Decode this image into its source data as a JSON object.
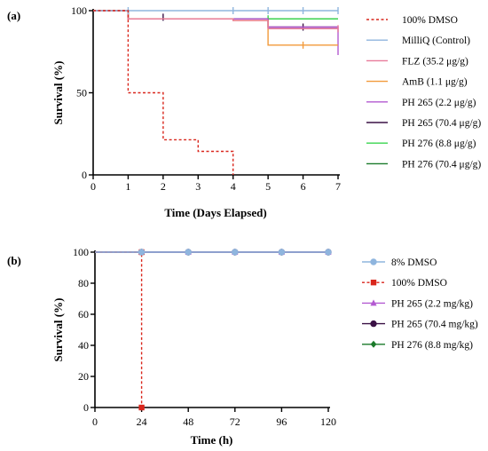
{
  "chart_data": [
    {
      "panel_label": "(a)",
      "type": "line",
      "subtype": "kaplan-meier-step",
      "xlabel": "Time (Days Elapsed)",
      "ylabel": "Survival (%)",
      "xlim": [
        0,
        7
      ],
      "ylim": [
        0,
        100
      ],
      "xticks": [
        0,
        1,
        2,
        3,
        4,
        5,
        6,
        7
      ],
      "yticks": [
        0,
        50,
        100
      ],
      "grid": false,
      "legend": "right",
      "series": [
        {
          "name": "100% DMSO",
          "color": "#d9261c",
          "dashed": true,
          "x": [
            0,
            1,
            1,
            2,
            2,
            3,
            3,
            4,
            4
          ],
          "y": [
            100,
            100,
            50,
            50,
            21.4,
            21.4,
            14.3,
            14.3,
            0
          ],
          "censor": []
        },
        {
          "name": "MilliQ (Control)",
          "color": "#8fb5de",
          "dashed": false,
          "x": [
            0,
            7
          ],
          "y": [
            100,
            100
          ],
          "censor": [
            [
              1,
              100
            ],
            [
              4,
              100
            ],
            [
              5,
              100
            ],
            [
              6,
              100
            ],
            [
              7,
              100
            ]
          ]
        },
        {
          "name": "FLZ (35.2 μg/g)",
          "color": "#e87a9a",
          "dashed": false,
          "x": [
            0,
            1,
            1,
            4,
            4,
            5,
            5,
            7
          ],
          "y": [
            100,
            100,
            95,
            95,
            94,
            94,
            89,
            89
          ],
          "censor": [
            [
              7,
              89
            ]
          ]
        },
        {
          "name": "AmB (1.1 μg/g)",
          "color": "#f29a3a",
          "dashed": false,
          "x": [
            0,
            1,
            1,
            4,
            4,
            5,
            5,
            7
          ],
          "y": [
            100,
            100,
            95,
            95,
            94,
            94,
            79,
            79
          ],
          "censor": [
            [
              6,
              79
            ]
          ]
        },
        {
          "name": "PH 265 (2.2 μg/g)",
          "color": "#b35ad1",
          "dashed": false,
          "x": [
            0,
            1,
            1,
            5,
            5,
            7,
            7
          ],
          "y": [
            100,
            100,
            95,
            95,
            90,
            90,
            73
          ],
          "censor": []
        },
        {
          "name": "PH 265 (70.4 μg/g)",
          "color": "#3a1145",
          "dashed": false,
          "x": [
            0,
            1,
            1,
            5,
            5,
            7
          ],
          "y": [
            100,
            100,
            95,
            95,
            90,
            90
          ],
          "censor": [
            [
              2,
              96
            ],
            [
              6,
              90
            ]
          ]
        },
        {
          "name": "PH 276 (8.8 μg/g)",
          "color": "#39d64f",
          "dashed": false,
          "x": [
            0,
            1,
            1,
            7
          ],
          "y": [
            100,
            100,
            95,
            95
          ],
          "censor": [
            [
              5,
              95
            ]
          ]
        },
        {
          "name": "PH 276 (70.4 μg/g)",
          "color": "#1a7a2a",
          "dashed": false,
          "x": [
            0,
            1,
            1,
            7
          ],
          "y": [
            100,
            100,
            95,
            95
          ],
          "censor": []
        }
      ]
    },
    {
      "panel_label": "(b)",
      "type": "line",
      "subtype": "kaplan-meier-step",
      "xlabel": "Time (h)",
      "ylabel": "Survival (%)",
      "xlim": [
        0,
        120
      ],
      "ylim": [
        0,
        100
      ],
      "xticks": [
        0,
        24,
        48,
        72,
        96,
        120
      ],
      "yticks": [
        0,
        20,
        40,
        60,
        80,
        100
      ],
      "grid": false,
      "legend": "right",
      "series": [
        {
          "name": "8% DMSO",
          "color": "#8fb5de",
          "dashed": false,
          "marker": "circle",
          "x": [
            0,
            24,
            48,
            72,
            96,
            120
          ],
          "y": [
            100,
            100,
            100,
            100,
            100,
            100
          ]
        },
        {
          "name": "100% DMSO",
          "color": "#d9261c",
          "dashed": true,
          "marker": "square",
          "x": [
            0,
            24,
            24
          ],
          "y": [
            100,
            100,
            0
          ]
        },
        {
          "name": "PH 265 (2.2 mg/kg)",
          "color": "#b35ad1",
          "dashed": false,
          "marker": "triangle",
          "x": [
            0,
            24,
            48,
            72,
            96,
            120
          ],
          "y": [
            100,
            100,
            100,
            100,
            100,
            100
          ]
        },
        {
          "name": "PH 265 (70.4 mg/kg)",
          "color": "#3a1145",
          "dashed": false,
          "marker": "circle",
          "x": [
            0,
            24,
            48,
            72,
            96,
            120
          ],
          "y": [
            100,
            100,
            100,
            100,
            100,
            100
          ]
        },
        {
          "name": "PH 276 (8.8 mg/kg)",
          "color": "#1a7a2a",
          "dashed": false,
          "marker": "diamond",
          "x": [
            0,
            24,
            48,
            72,
            96,
            120
          ],
          "y": [
            100,
            100,
            100,
            100,
            100,
            100
          ]
        }
      ]
    }
  ]
}
